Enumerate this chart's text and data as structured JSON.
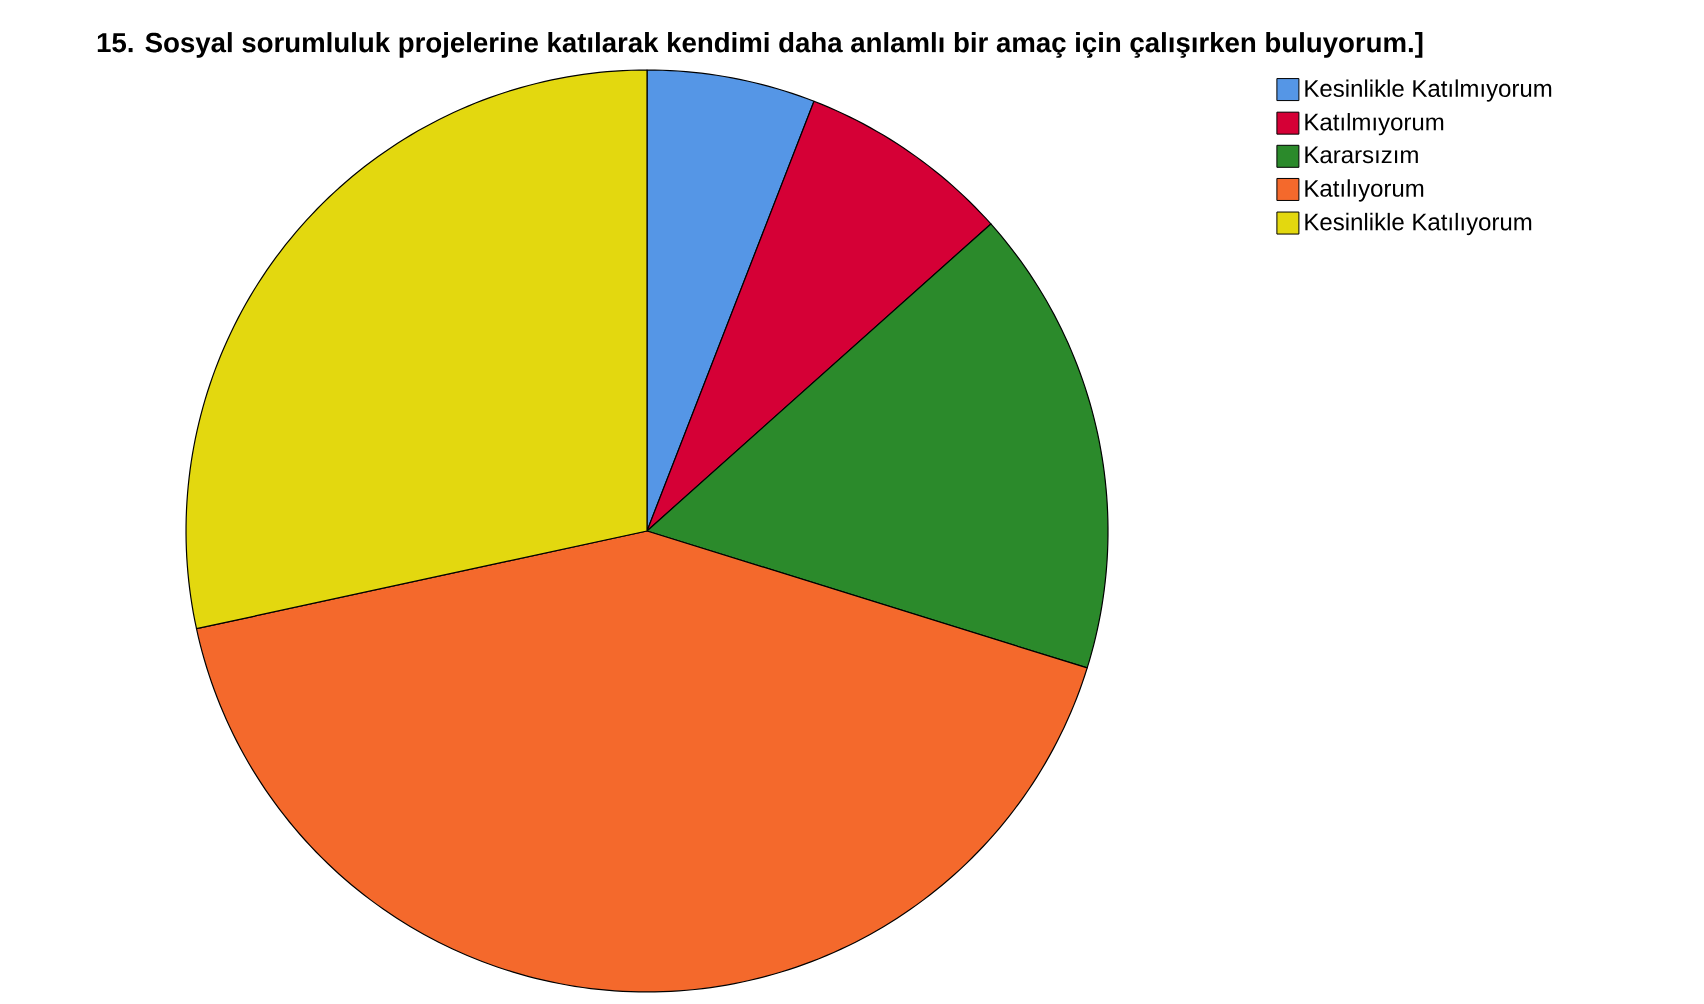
{
  "chart_data": {
    "type": "pie",
    "title": "15. Sosyal sorumluluk projelerine katılarak kendimi daha anlamlı bir amaç için çalışırken buluyorum.]",
    "categories": [
      "Kesinlikle Katılmıyorum",
      "Katılmıyorum",
      "Kararsızım",
      "Katılıyorum",
      "Kesinlikle Katılıyorum"
    ],
    "values": [
      5.9,
      7.5,
      16.4,
      41.8,
      28.4
    ],
    "colors": [
      "#5596e6",
      "#d50036",
      "#2b8a2b",
      "#f4692c",
      "#e3d80f"
    ],
    "legend": "top right"
  }
}
